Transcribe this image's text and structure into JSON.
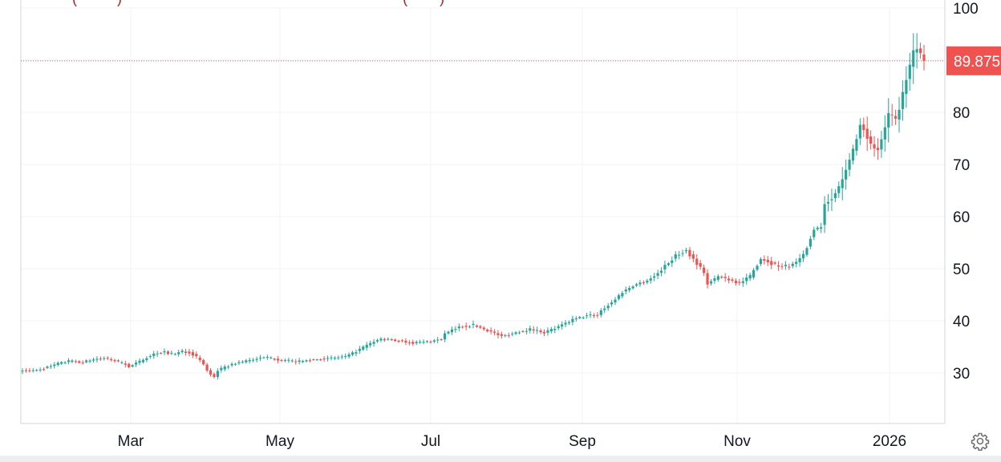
{
  "chart_data": {
    "type": "candlestick",
    "title": "",
    "xlabel": "",
    "ylabel": "",
    "x_tick_labels": [
      "Mar",
      "May",
      "Jul",
      "Sep",
      "Nov",
      "2026"
    ],
    "y_tick_labels": [
      "30",
      "40",
      "50",
      "60",
      "70",
      "80",
      "100"
    ],
    "ylim": [
      20,
      100
    ],
    "grid": true,
    "last_price": 89.875,
    "last_price_label": "89.875",
    "colors": {
      "up": "#26a69a",
      "down": "#ef5350",
      "grid": "#f0f3fa",
      "text": "#131722",
      "price_line": "#ef5350"
    },
    "legend_fragment": "(          )                                                                      (        )",
    "series": [
      {
        "period": "early Jan to late Feb",
        "approx_close_path": [
          30.6,
          30.4,
          31.0,
          31.8,
          32.3,
          32.0,
          32.6,
          32.8,
          32.2,
          31.5
        ]
      },
      {
        "period": "Mar to mid Apr",
        "approx_close_path": [
          31.2,
          32.0,
          33.0,
          33.8,
          34.0,
          33.6,
          34.2,
          33.8,
          32.5,
          30.0,
          28.8
        ]
      },
      {
        "period": "mid Apr to Jul",
        "approx_close_path": [
          30.5,
          31.8,
          32.5,
          33.0,
          32.4,
          32.2,
          32.6,
          32.8,
          33.2,
          35.0,
          36.5,
          36.2,
          35.8,
          36.0,
          36.6
        ]
      },
      {
        "period": "Jul to Sep",
        "approx_close_path": [
          37.5,
          38.8,
          39.2,
          38.2,
          37.0,
          37.8,
          38.4,
          37.8,
          38.8,
          40.2,
          41.0,
          41.2
        ]
      },
      {
        "period": "Sep to late Oct",
        "approx_close_path": [
          42.0,
          43.5,
          45.5,
          46.8,
          47.5,
          48.5,
          50.5,
          52.5,
          53.5,
          51.0,
          48.5
        ]
      },
      {
        "period": "late Oct to Dec",
        "approx_close_path": [
          47.0,
          48.5,
          48.0,
          47.2,
          48.5,
          52.0,
          51.0,
          50.4,
          50.8,
          52.5,
          57.5,
          58.5
        ]
      },
      {
        "period": "Dec to late Jan 2026",
        "approx_close_path": [
          62.5,
          64.0,
          67.0,
          72.0,
          78.0,
          74.0,
          72.5,
          79.5,
          78.5,
          86.5,
          92.5,
          89.875
        ]
      }
    ]
  },
  "controls": {
    "settings_icon": "gear-icon"
  }
}
